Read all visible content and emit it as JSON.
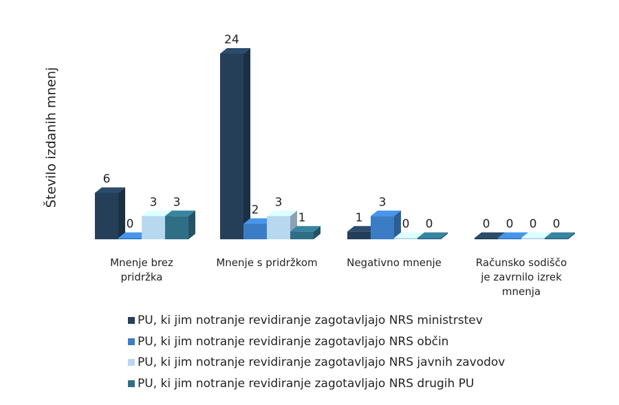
{
  "chart_data": {
    "type": "bar3d",
    "y_axis_label": "Število izdanih mnenj",
    "categories": [
      "Mnenje brez pridržka",
      "Mnenje s pridržkom",
      "Negativno mnenje",
      "Računsko sodiščo je zavrnilo izrek mnenja"
    ],
    "series": [
      {
        "name": "PU, ki jim notranje revidiranje zagotavljajo NRS ministrstev",
        "color": "#253f59",
        "values": [
          6,
          24,
          1,
          0
        ]
      },
      {
        "name": "PU, ki jim notranje revidiranje zagotavljajo NRS občin",
        "color": "#3b7dc4",
        "values": [
          0,
          2,
          3,
          0
        ]
      },
      {
        "name": "PU, ki jim notranje revidiranje zagotavljajo NRS javnih zavodov",
        "color": "#b8d8f0",
        "values": [
          3,
          3,
          0,
          0
        ]
      },
      {
        "name": "PU, ki jim notranje revidiranje zagotavljajo NRS drugih PU",
        "color": "#2f6f86",
        "values": [
          3,
          1,
          0,
          0
        ]
      }
    ],
    "legend": "bottom"
  }
}
